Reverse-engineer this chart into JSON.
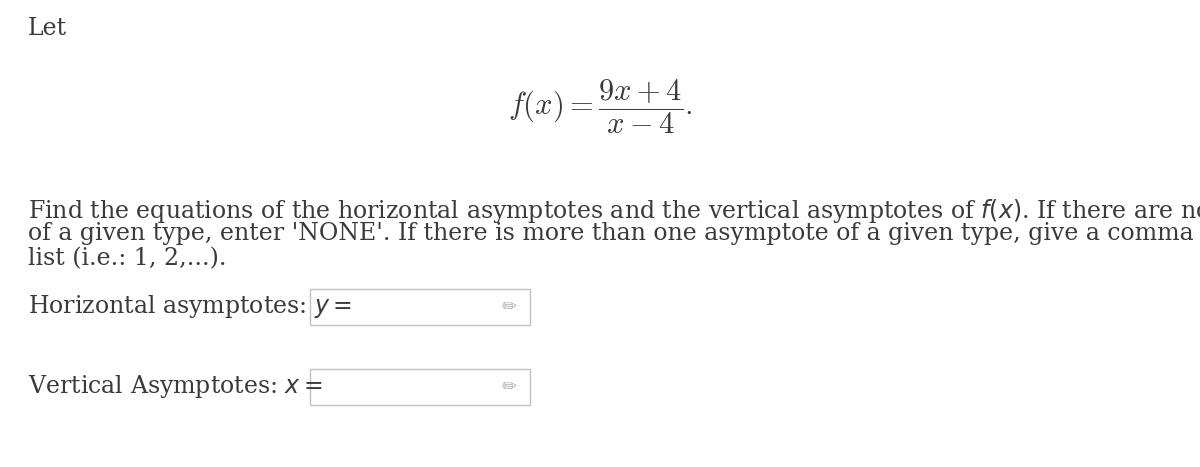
{
  "background_color": "#ffffff",
  "text_color": "#3a3a3a",
  "title_text": "Let",
  "formula_text": "$f(x) = \\dfrac{9x + 4}{x - 4}.$",
  "body_text_line1": "Find the equations of the horizontal asymptotes and the vertical asymptotes of $f(x)$. If there are no asymptotes",
  "body_text_line2": "of a given type, enter 'NONE'. If there is more than one asymptote of a given type, give a comma separated",
  "body_text_line3": "list (i.e.: 1, 2,...).",
  "horiz_label": "Horizontal asymptotes: $y =$",
  "vert_label": "Vertical Asymptotes: $x =$",
  "font_size_body": 17,
  "font_size_formula": 22,
  "font_size_label": 17,
  "text_color_label": "#3a3a3a",
  "box_edge_color": "#c0c0c0",
  "pencil_color": "#b0b0b0"
}
